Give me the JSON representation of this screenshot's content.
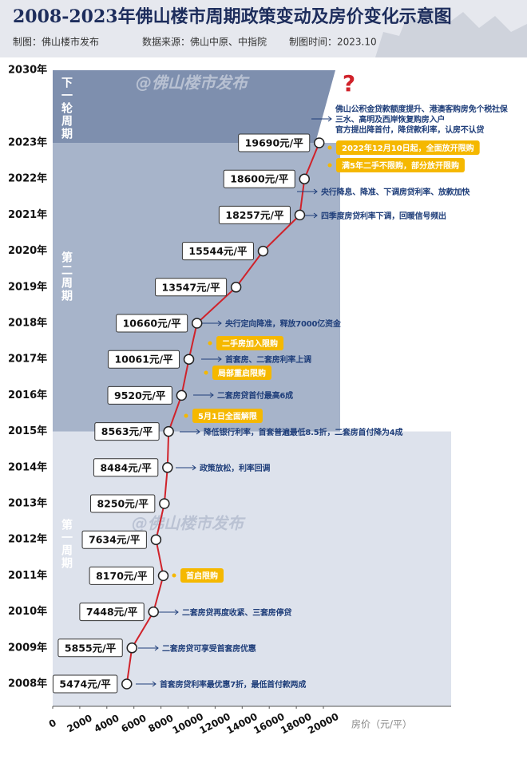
{
  "chart_data": {
    "type": "line",
    "title": "2008-2023年佛山楼市周期政策变动及房价变化示意图",
    "credits": [
      "制图：佛山楼市发布",
      "数据来源：佛山中原、中指院",
      "制图时间：2023.10"
    ],
    "categories": [
      "2008年",
      "2009年",
      "2010年",
      "2011年",
      "2012年",
      "2013年",
      "2014年",
      "2015年",
      "2016年",
      "2017年",
      "2018年",
      "2019年",
      "2020年",
      "2021年",
      "2022年",
      "2023年",
      "2030年"
    ],
    "values": [
      5474,
      5855,
      7448,
      8170,
      7634,
      8250,
      8484,
      8563,
      9520,
      10061,
      10660,
      13547,
      15544,
      18257,
      18600,
      19690,
      null
    ],
    "value_labels": [
      "5474元/平",
      "5855元/平",
      "7448元/平",
      "8170元/平",
      "7634元/平",
      "8250元/平",
      "8484元/平",
      "8563元/平",
      "9520元/平",
      "10061元/平",
      "10660元/平",
      "13547元/平",
      "15544元/平",
      "18257元/平",
      "18600元/平",
      "19690元/平",
      null
    ],
    "color": "#d0222a",
    "xlim": [
      0,
      20000
    ],
    "xticks": [
      0,
      2000,
      4000,
      6000,
      8000,
      10000,
      12000,
      14000,
      16000,
      18000,
      20000
    ],
    "x_label": "房价（元/平）",
    "periods": [
      "第一周期",
      "第二周期",
      "下一轮周期"
    ],
    "watermark": "@佛山楼市发布",
    "question_mark": "?",
    "annotations": [
      {
        "text": "首套房贷利率最优惠7折，最低首付款两成",
        "style": "note"
      },
      {
        "text": "二套房贷可享受首套房优惠",
        "style": "note"
      },
      {
        "text": "二套房贷再度收紧、三套房停贷",
        "style": "note"
      },
      {
        "text": "首启限购",
        "style": "tag"
      },
      {
        "text": "政策放松，利率回调",
        "style": "note"
      },
      {
        "text": "降低银行利率，首套普遍最低8.5折，二套房首付降为4成",
        "style": "note"
      },
      {
        "text": "5月1日全面解限",
        "style": "tag"
      },
      {
        "text": "二套房贷首付最高6成",
        "style": "note"
      },
      {
        "text": "二手房加入限购",
        "style": "tag"
      },
      {
        "text": "首套房、二套房利率上调",
        "style": "note"
      },
      {
        "text": "局部重启限购",
        "style": "tag"
      },
      {
        "text": "央行定向降准，释放7000亿资金",
        "style": "note"
      },
      {
        "text": "四季度房贷利率下调，回暖信号频出",
        "style": "note"
      },
      {
        "text": "央行降息、降准、下调房贷利率、放款加快",
        "style": "note"
      },
      {
        "text": "满5年二手不限购，部分放开限购",
        "style": "tag"
      },
      {
        "text": "2022年12月10日起，全面放开限购",
        "style": "tag"
      },
      {
        "text": "官方提出降首付，降贷款利率，认房不认贷",
        "style": "plain"
      },
      {
        "text": "三水、高明及西岸恢复购房入户",
        "style": "plain"
      },
      {
        "text": "佛山公积金贷款额度提升、港澳客购房免个税社保",
        "style": "plain"
      }
    ]
  }
}
